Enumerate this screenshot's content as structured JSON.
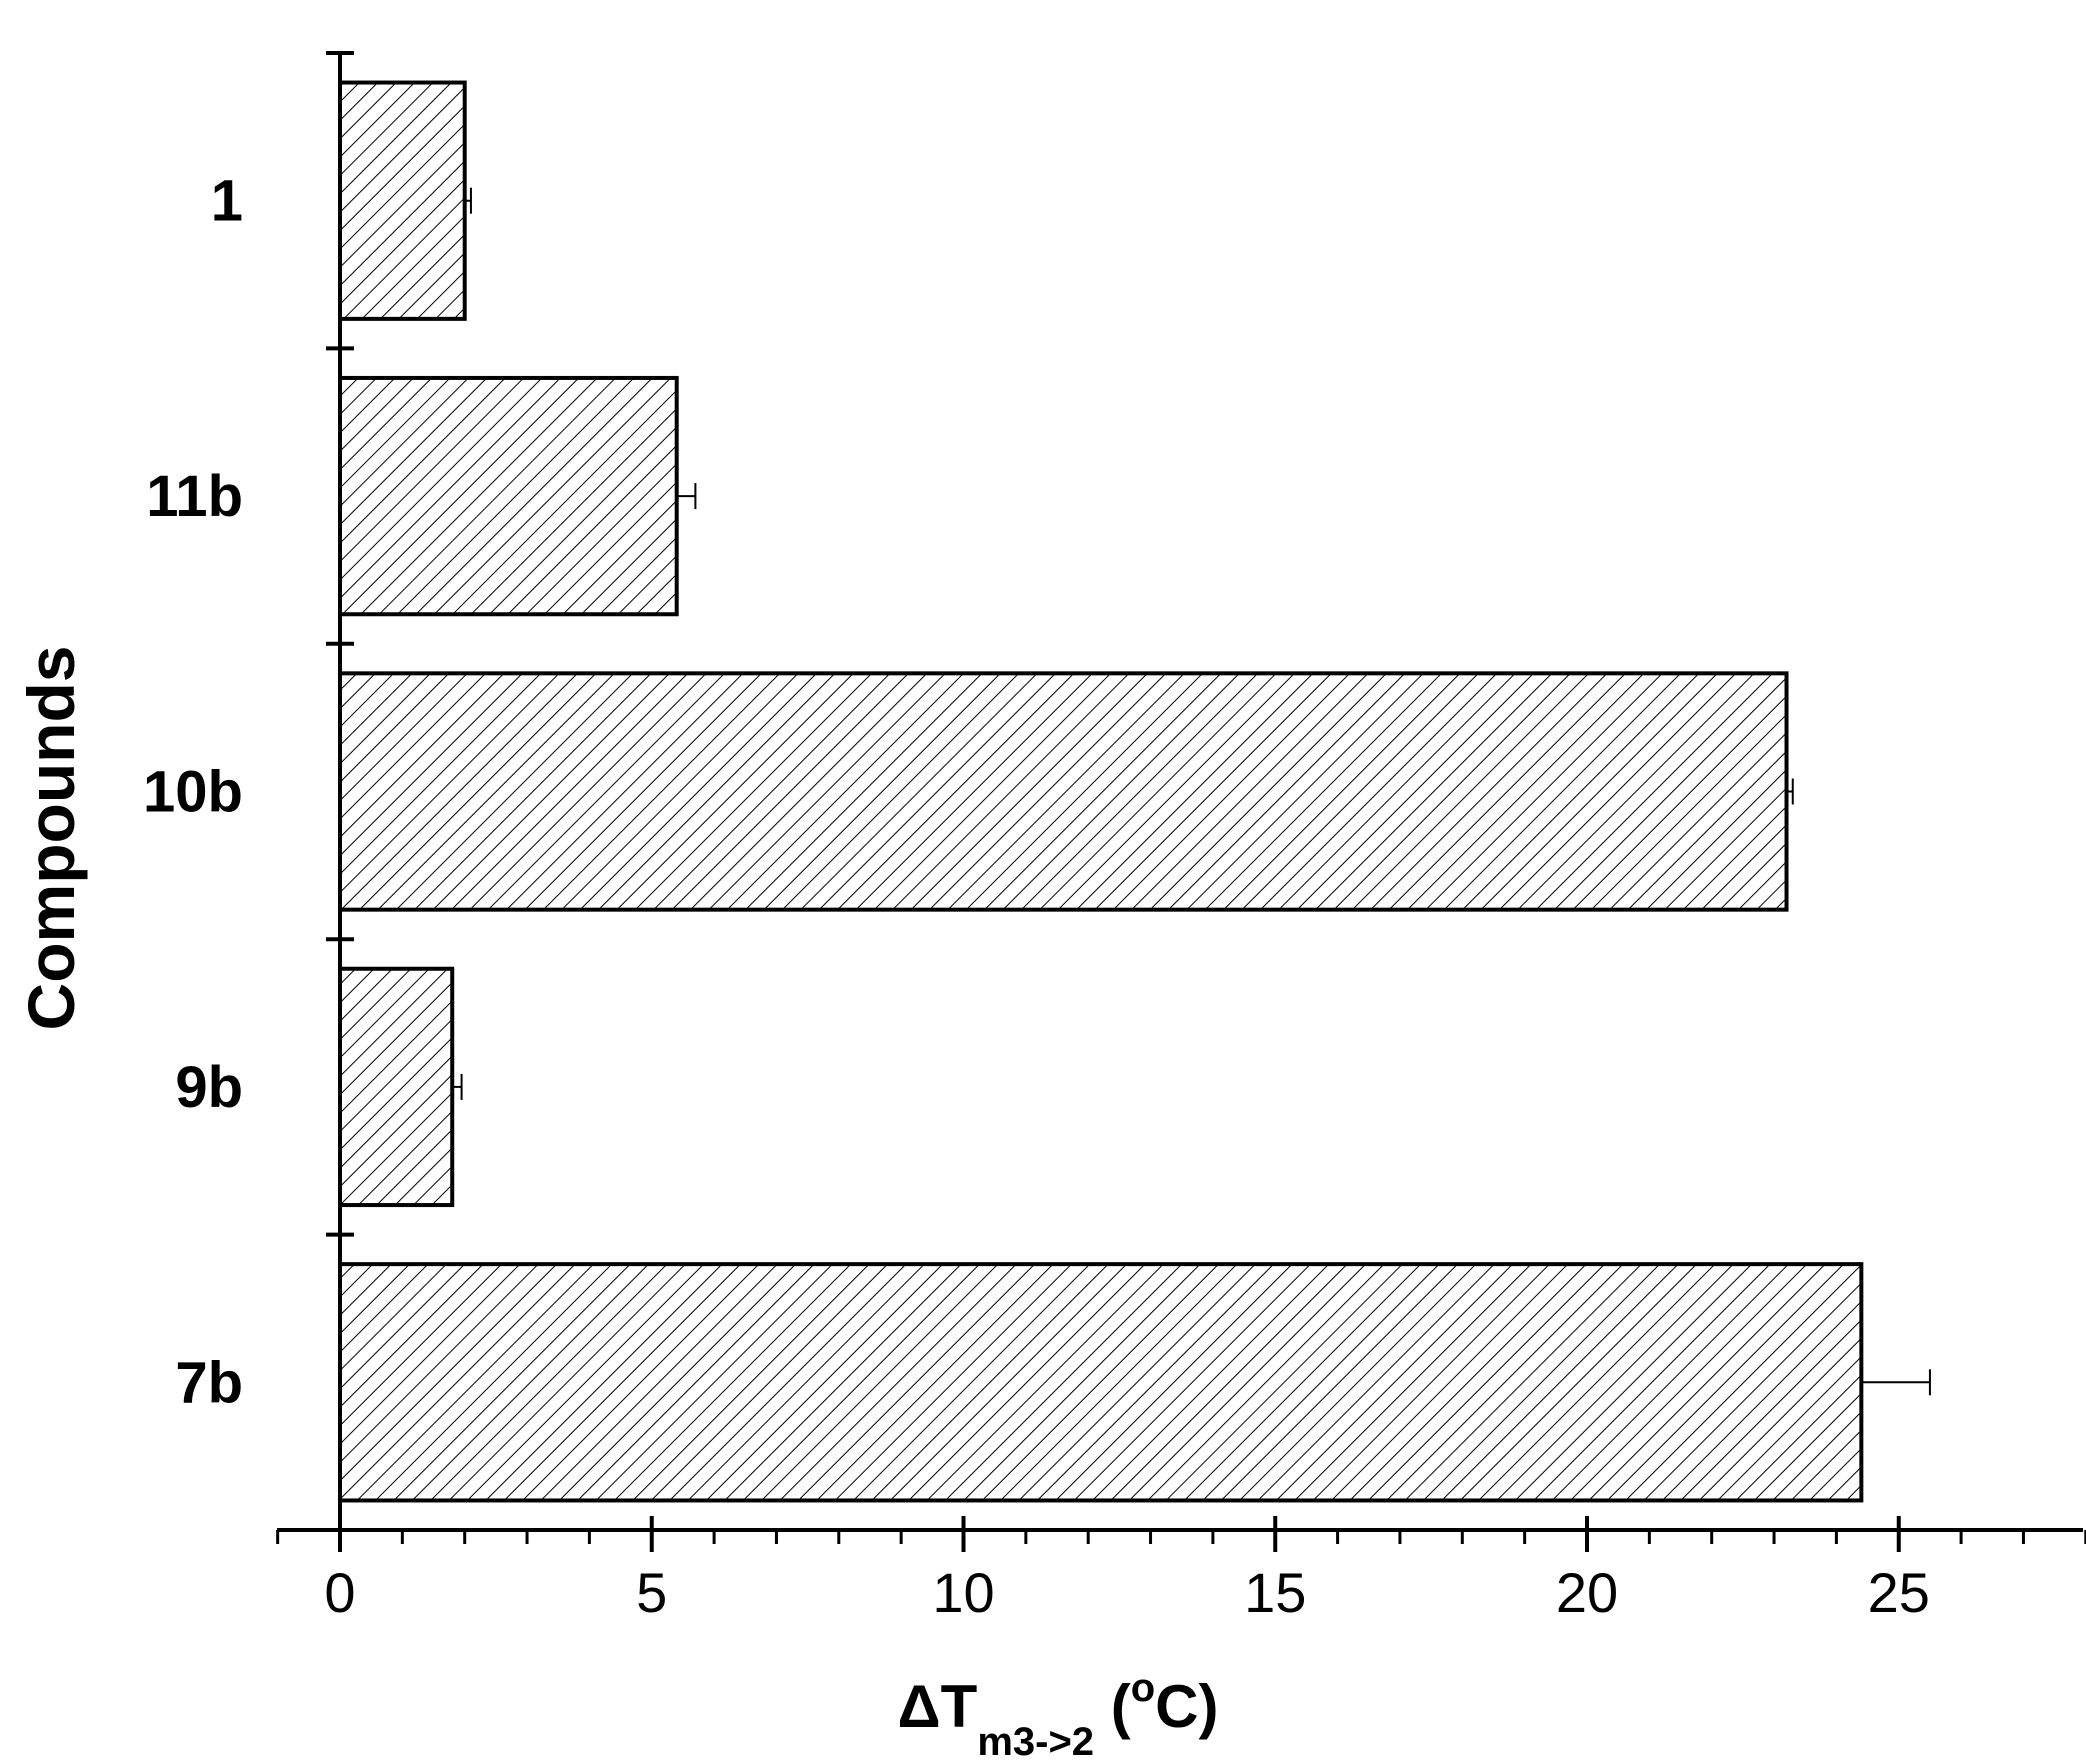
{
  "chart_data": {
    "type": "bar",
    "orientation": "horizontal",
    "categories": [
      "1",
      "11b",
      "10b",
      "9b",
      "7b"
    ],
    "values": [
      2.0,
      5.4,
      23.2,
      1.8,
      24.4
    ],
    "errors": [
      0.1,
      0.3,
      0.1,
      0.15,
      1.1
    ],
    "xlim": [
      -1,
      28
    ],
    "xticks": [
      0,
      5,
      10,
      15,
      20,
      25
    ],
    "xlabel": {
      "prefix": "ΔT",
      "subscript": "m3->2",
      "open": " (",
      "superscript": "o",
      "unit": "C)"
    },
    "ylabel": "Compounds",
    "bar_fill": "hatched",
    "bar_color": "#000000",
    "grid": false,
    "legend": "none"
  }
}
